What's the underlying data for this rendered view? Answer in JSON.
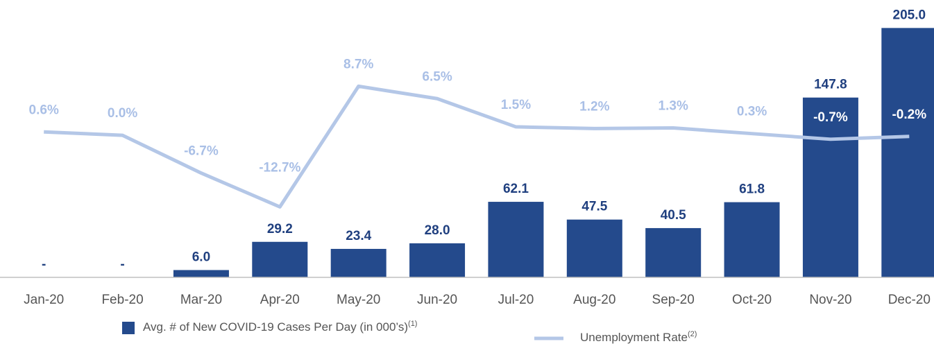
{
  "chart_data": {
    "type": "bar_line",
    "categories": [
      "Jan-20",
      "Feb-20",
      "Mar-20",
      "Apr-20",
      "May-20",
      "Jun-20",
      "Jul-20",
      "Aug-20",
      "Sep-20",
      "Oct-20",
      "Nov-20",
      "Dec-20"
    ],
    "series": [
      {
        "name": "Avg. # of New COVID-19 Cases Per Day (in 000’s)",
        "note": "(1)",
        "type": "bar",
        "color": "#244a8c",
        "values": [
          0,
          0,
          6.0,
          29.2,
          23.4,
          28.0,
          62.1,
          47.5,
          40.5,
          61.8,
          147.8,
          205.0
        ],
        "value_labels": [
          "-",
          "-",
          "6.0",
          "29.2",
          "23.4",
          "28.0",
          "62.1",
          "47.5",
          "40.5",
          "61.8",
          "147.8",
          "205.0"
        ]
      },
      {
        "name": "Unemployment Rate",
        "note": "(2)",
        "type": "line",
        "axis": "y2",
        "color": "#b4c7e7",
        "values": [
          0.6,
          0.0,
          -6.7,
          -12.7,
          8.7,
          6.5,
          1.5,
          1.2,
          1.3,
          0.3,
          -0.7,
          -0.2
        ],
        "value_labels": [
          "0.6%",
          "0.0%",
          "-6.7%",
          "-12.7%",
          "8.7%",
          "6.5%",
          "1.5%",
          "1.2%",
          "1.3%",
          "0.3%",
          "-0.7%",
          "-0.2%"
        ]
      }
    ],
    "ylim": [
      0,
      228
    ],
    "y2lim": [
      -25.2,
      24
    ]
  }
}
